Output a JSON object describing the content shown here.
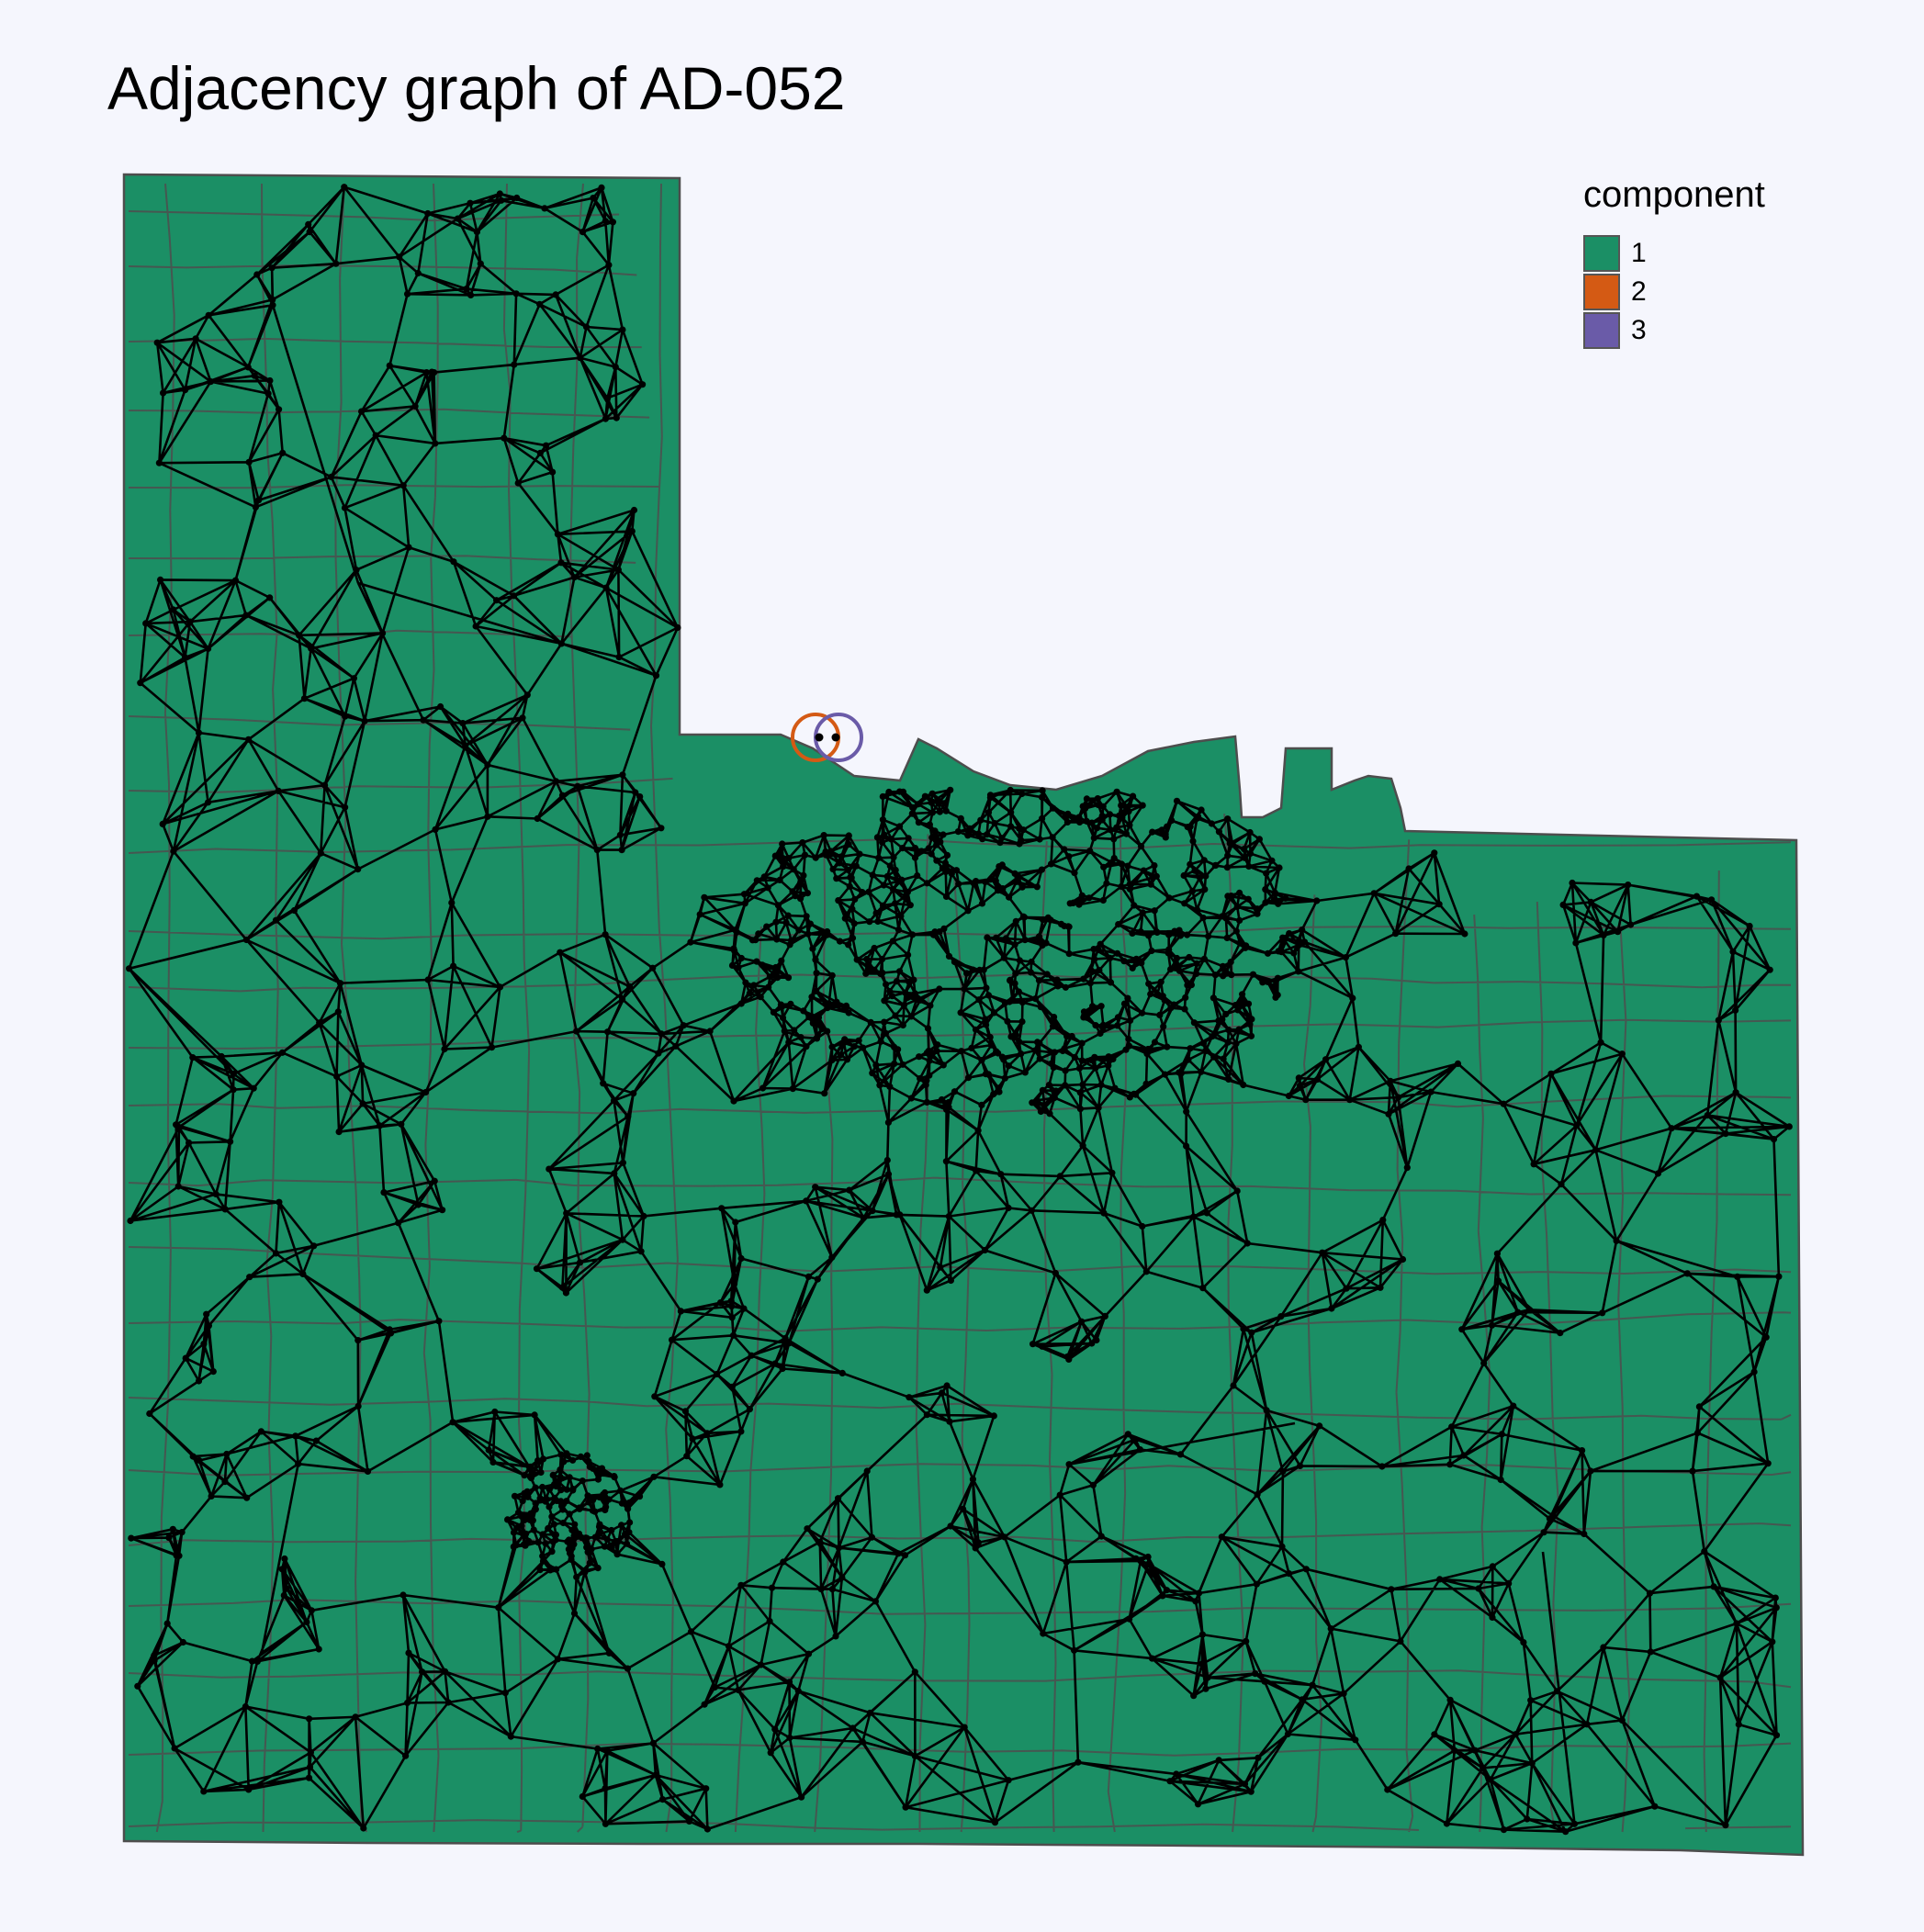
{
  "title": "Adjacency graph of AD-052",
  "legend": {
    "title": "component",
    "items": [
      {
        "label": "1",
        "color": "#1B8F65"
      },
      {
        "label": "2",
        "color": "#D45A14"
      },
      {
        "label": "3",
        "color": "#6A5BA8"
      }
    ]
  },
  "colors": {
    "background": "#F5F6FD",
    "region_fill": "#1B8F65",
    "region_border": "#4D4D4D",
    "edge": "#000000",
    "node": "#000000"
  }
}
